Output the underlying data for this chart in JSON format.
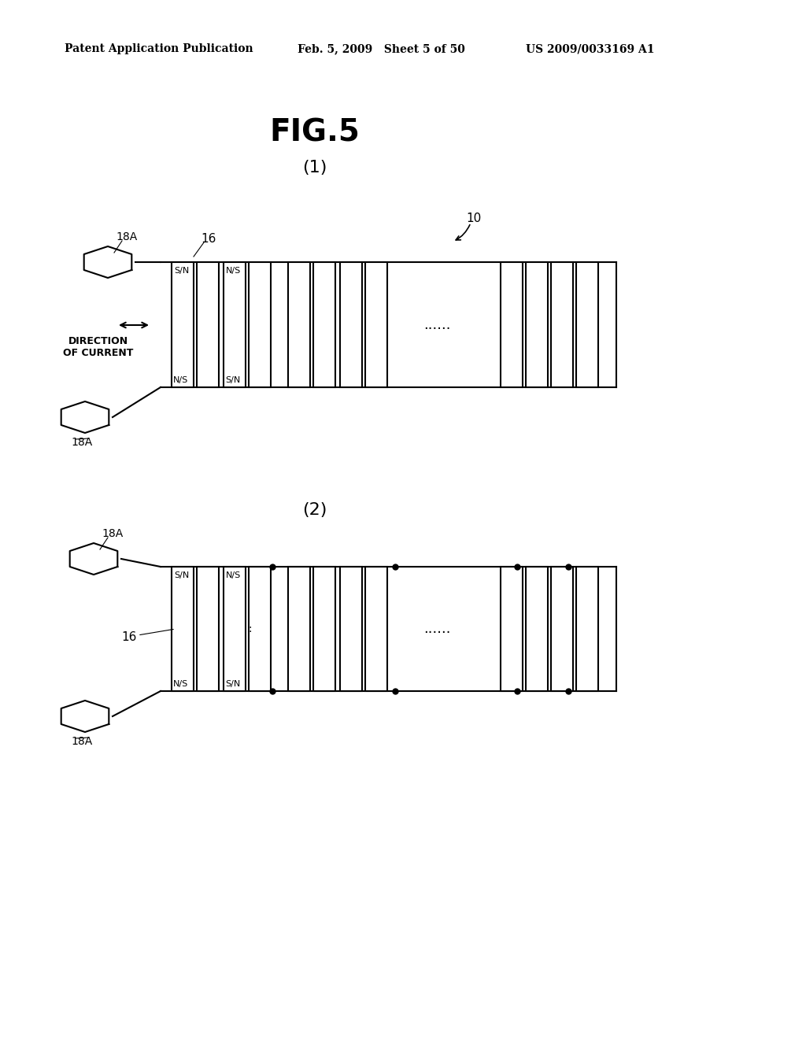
{
  "bg_color": "#ffffff",
  "header_left": "Patent Application Publication",
  "header_mid": "Feb. 5, 2009   Sheet 5 of 50",
  "header_right": "US 2009/0033169 A1",
  "fig_title": "FIG.5",
  "sub1": "(1)",
  "sub2": "(2)",
  "label_10": "10",
  "label_16_1": "16",
  "label_16_2": "16",
  "label_18A": "18A",
  "label_dir": "DIRECTION\nOF CURRENT",
  "label_dots": "......",
  "line_color": "#000000",
  "lw": 1.5
}
